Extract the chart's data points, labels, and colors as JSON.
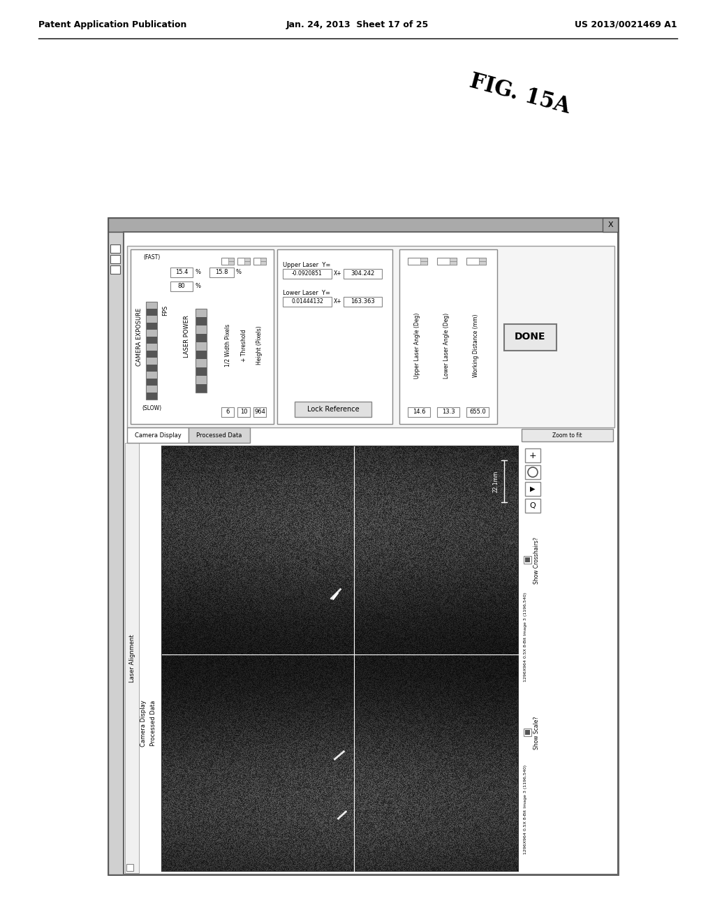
{
  "header_left": "Patent Application Publication",
  "header_center": "Jan. 24, 2013  Sheet 17 of 25",
  "header_right": "US 2013/0021469 A1",
  "fig_label": "FIG. 15A",
  "bg_color": "#ffffff",
  "camera_exposure_label": "CAMERA EXPOSURE",
  "fast_label": "(FAST)",
  "slow_label": "(SLOW)",
  "fps_label": "FPS",
  "fps_value": "15.4",
  "fps_pct": "80",
  "laser_power_label": "LASER POWER",
  "laser_pct_value": "15.8",
  "half_width_label": "1/2 Width Pixels",
  "threshold_label": "+ Threshold",
  "height_pixels_label": "Height (Pixels)",
  "hw_val": "6",
  "thresh_val": "10",
  "height_val": "964",
  "upper_laser_label": "Upper Laser  Y=",
  "lower_laser_label": "Lower Laser  Y=",
  "upper_laser_y": "-0.0920851",
  "upper_laser_xplus": "304.242",
  "lower_laser_y": "0.01444132",
  "lower_laser_xplus": "163.363",
  "lock_reference": "Lock Reference",
  "upper_angle_label": "Upper Laser Angle (Deg)",
  "lower_angle_label": "Lower Laser Angle (Deg)",
  "working_dist_label": "Working Distance (mm)",
  "upper_angle_val": "14.6",
  "lower_angle_val": "13.3",
  "working_dist_val": "655.0",
  "done_label": "DONE",
  "cam_disp_tab": "Camera Display",
  "proc_data_tab": "Processed Data",
  "laser_align_label": "Laser Alignment",
  "show_crosshairs": "Show Crosshairs?",
  "show_scale": "Show Scale?",
  "image_info": "1296X964 0.5X 8-Bit Image 3 (1196,540)",
  "zoom_to_fit": "Zoom to fit",
  "scale_label": "22.1mm"
}
